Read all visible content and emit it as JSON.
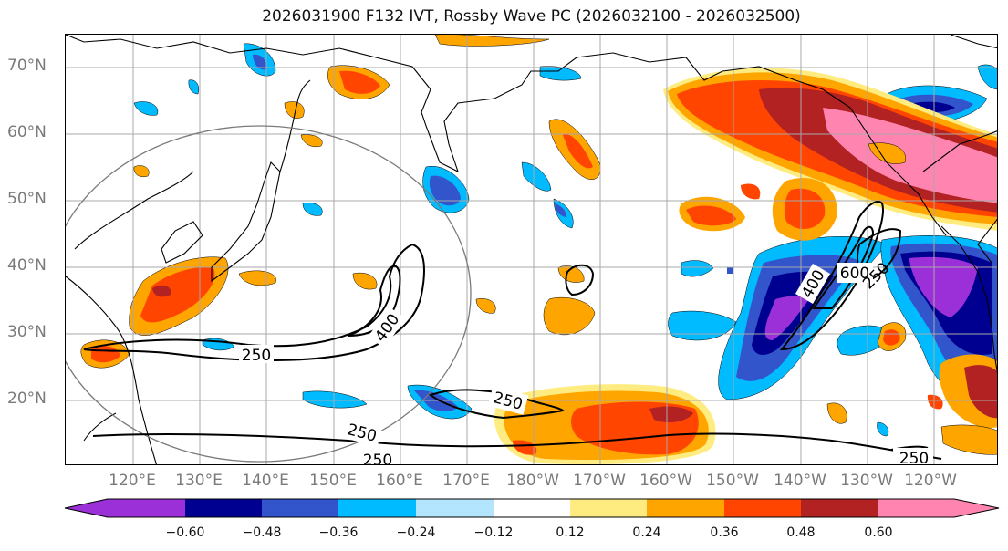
{
  "title": "2026031900 F132 IVT, Rossby Wave PC (2026032100 - 2026032500)",
  "latitude_labels": [
    "70°N",
    "60°N",
    "50°N",
    "40°N",
    "30°N",
    "20°N"
  ],
  "longitude_labels": [
    "120°E",
    "130°E",
    "140°E",
    "150°E",
    "160°E",
    "170°E",
    "180°W",
    "170°W",
    "160°W",
    "150°W",
    "140°W",
    "130°W",
    "120°W"
  ],
  "contour_labels": [
    "400",
    "250",
    "250",
    "250",
    "250",
    "400",
    "600",
    "250",
    "250"
  ],
  "colorbar": {
    "tick_labels": [
      "−0.60",
      "−0.48",
      "−0.36",
      "−0.24",
      "−0.12",
      "0.12",
      "0.24",
      "0.36",
      "0.48",
      "0.60"
    ],
    "colors": [
      "#9b30d9",
      "#000090",
      "#3355cc",
      "#00bbff",
      "#b3e5ff",
      "#ffffff",
      "#ffec80",
      "#ffa500",
      "#ff4500",
      "#b22222",
      "#ff85b0"
    ]
  }
}
